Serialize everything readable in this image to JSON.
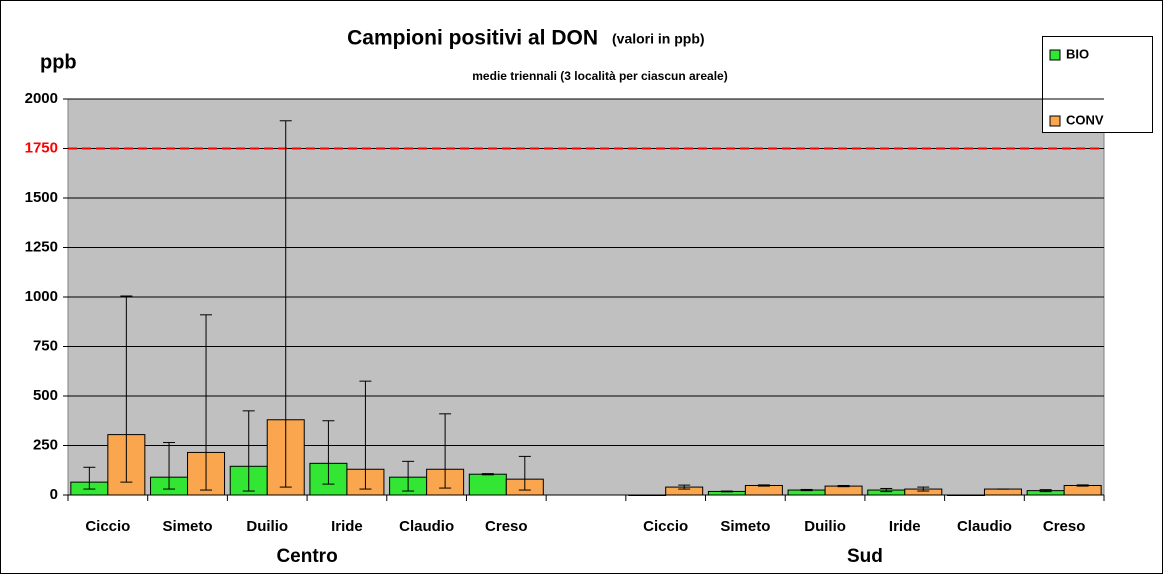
{
  "chart_data": {
    "type": "bar",
    "title": "Campioni positivi al DON",
    "title_note": "(valori in ppb)",
    "subtitle": "medie triennali (3 località per ciascun areale)",
    "y_label": "ppb",
    "categories": [
      "Ciccio",
      "Simeto",
      "Duilio",
      "Iride",
      "Claudio",
      "Creso",
      null,
      "Ciccio",
      "Simeto",
      "Duilio",
      "Iride",
      "Claudio",
      "Creso"
    ],
    "groups": [
      {
        "name": "Centro",
        "span": [
          0,
          5
        ]
      },
      {
        "name": "Sud",
        "span": [
          7,
          12
        ]
      }
    ],
    "series": [
      {
        "name": "BIO",
        "color": "#33e633",
        "values": [
          65,
          90,
          145,
          160,
          90,
          105,
          null,
          0,
          18,
          25,
          25,
          0,
          22
        ],
        "errors_minus": [
          35,
          60,
          125,
          105,
          70,
          3,
          null,
          0,
          2,
          3,
          8,
          0,
          5
        ],
        "errors_plus": [
          75,
          175,
          280,
          215,
          80,
          3,
          null,
          0,
          2,
          3,
          8,
          0,
          5
        ]
      },
      {
        "name": "CONV",
        "color": "#f9a64f",
        "values": [
          305,
          215,
          380,
          130,
          130,
          80,
          null,
          40,
          48,
          45,
          30,
          30,
          48
        ],
        "errors_minus": [
          240,
          190,
          340,
          100,
          95,
          55,
          null,
          10,
          3,
          3,
          10,
          0,
          3
        ],
        "errors_plus": [
          700,
          695,
          1510,
          445,
          280,
          115,
          null,
          10,
          3,
          3,
          10,
          0,
          3
        ]
      }
    ],
    "ylim": [
      0,
      2000
    ],
    "yticks": [
      0,
      250,
      500,
      750,
      1000,
      1250,
      1500,
      1750,
      2000
    ],
    "grid": true,
    "reference_line": {
      "value": 1750,
      "color": "#ff0000"
    },
    "legend": "top-right"
  }
}
